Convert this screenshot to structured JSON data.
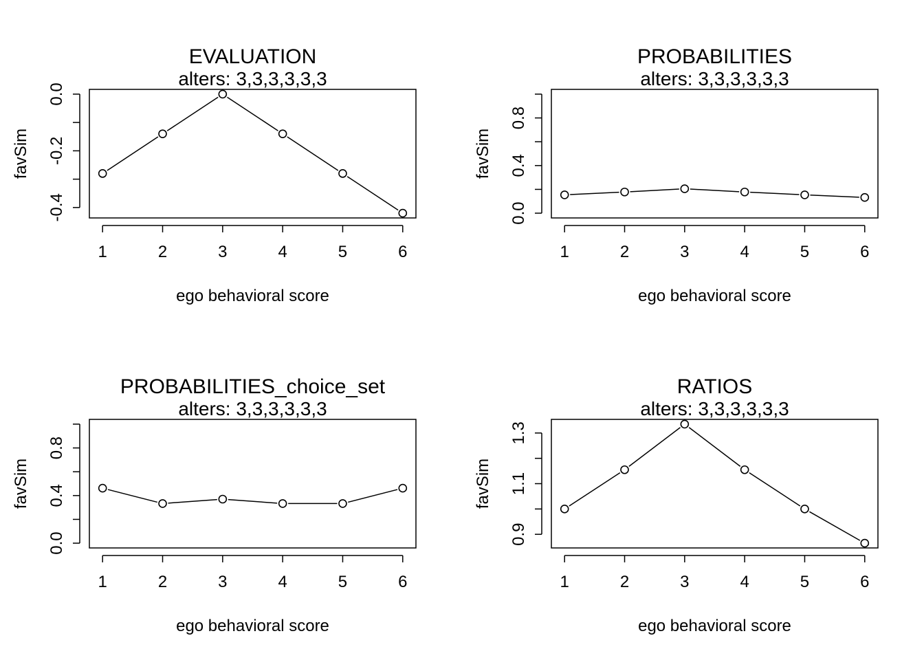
{
  "chart_data": [
    {
      "type": "line",
      "title": "EVALUATION",
      "subtitle": "alters: 3,3,3,3,3,3",
      "xlabel": "ego behavioral score",
      "ylabel": "favSim",
      "x": [
        1,
        2,
        3,
        4,
        5,
        6
      ],
      "y": [
        -0.28,
        -0.14,
        0.0,
        -0.14,
        -0.28,
        -0.42
      ],
      "xlim": [
        0.78,
        6.22
      ],
      "ylim": [
        -0.4368,
        0.0168
      ],
      "xticks": [
        "1",
        "2",
        "3",
        "4",
        "5",
        "6"
      ],
      "yticks": [
        -0.4,
        -0.3,
        -0.2,
        -0.1,
        0.0
      ],
      "ytick_labels": [
        "-0.4",
        "",
        "-0.2",
        "",
        "0.0"
      ],
      "grid": false,
      "markers": "open-circle"
    },
    {
      "type": "line",
      "title": "PROBABILITIES",
      "subtitle": "alters: 3,3,3,3,3,3",
      "xlabel": "ego behavioral score",
      "ylabel": "favSim",
      "x": [
        1,
        2,
        3,
        4,
        5,
        6
      ],
      "y": [
        0.154,
        0.178,
        0.205,
        0.178,
        0.154,
        0.132
      ],
      "xlim": [
        0.78,
        6.22
      ],
      "ylim": [
        -0.04,
        1.04
      ],
      "xticks": [
        "1",
        "2",
        "3",
        "4",
        "5",
        "6"
      ],
      "yticks": [
        0.0,
        0.2,
        0.4,
        0.6,
        0.8,
        1.0
      ],
      "ytick_labels": [
        "0.0",
        "",
        "0.4",
        "",
        "0.8",
        ""
      ],
      "grid": false,
      "markers": "open-circle"
    },
    {
      "type": "line",
      "title": "PROBABILITIES_choice_set",
      "subtitle": "alters: 3,3,3,3,3,3",
      "xlabel": "ego behavioral score",
      "ylabel": "favSim",
      "x": [
        1,
        2,
        3,
        4,
        5,
        6
      ],
      "y": [
        0.462,
        0.333,
        0.37,
        0.333,
        0.333,
        0.462
      ],
      "xlim": [
        0.78,
        6.22
      ],
      "ylim": [
        -0.04,
        1.04
      ],
      "xticks": [
        "1",
        "2",
        "3",
        "4",
        "5",
        "6"
      ],
      "yticks": [
        0.0,
        0.2,
        0.4,
        0.6,
        0.8,
        1.0
      ],
      "ytick_labels": [
        "0.0",
        "",
        "0.4",
        "",
        "0.8",
        ""
      ],
      "grid": false,
      "markers": "open-circle"
    },
    {
      "type": "line",
      "title": "RATIOS",
      "subtitle": "alters: 3,3,3,3,3,3",
      "xlabel": "ego behavioral score",
      "ylabel": "favSim",
      "x": [
        1,
        2,
        3,
        4,
        5,
        6
      ],
      "y": [
        1.0,
        1.155,
        1.335,
        1.155,
        1.0,
        0.865
      ],
      "xlim": [
        0.78,
        6.22
      ],
      "ylim": [
        0.8462,
        1.3538
      ],
      "xticks": [
        "1",
        "2",
        "3",
        "4",
        "5",
        "6"
      ],
      "yticks": [
        0.9,
        1.0,
        1.1,
        1.2,
        1.3
      ],
      "ytick_labels": [
        "0.9",
        "",
        "1.1",
        "",
        "1.3"
      ],
      "grid": false,
      "markers": "open-circle"
    }
  ]
}
